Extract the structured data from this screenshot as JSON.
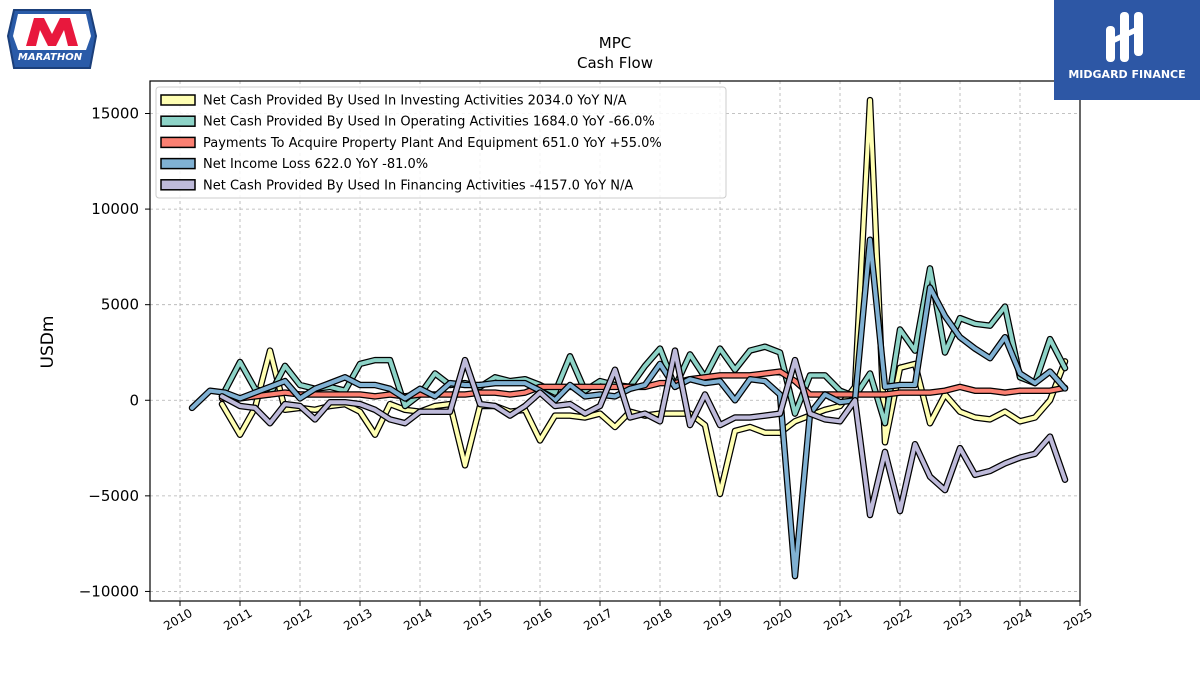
{
  "logos": {
    "left_text": "MARATHON",
    "right_text": "MIDGARD FINANCE"
  },
  "chart_data": {
    "type": "line",
    "title": "MPC",
    "subtitle": "Cash Flow",
    "ylabel": "USDm",
    "xlabel": "",
    "xlim": [
      2009.5,
      2025.0
    ],
    "ylim": [
      -10500,
      16700
    ],
    "yticks": [
      -10000,
      -5000,
      0,
      5000,
      10000,
      15000
    ],
    "xticks": [
      2010,
      2011,
      2012,
      2013,
      2014,
      2015,
      2016,
      2017,
      2018,
      2019,
      2020,
      2021,
      2022,
      2023,
      2024,
      2025
    ],
    "grid": true,
    "legend_position": "top-left",
    "series": [
      {
        "name": "Net Cash Provided By Used In Investing Activities  2034.0 YoY N/A",
        "color": "#ffffb3",
        "points": [
          [
            2010.7,
            -200
          ],
          [
            2011.0,
            -1800
          ],
          [
            2011.25,
            -400
          ],
          [
            2011.5,
            2600
          ],
          [
            2011.75,
            -500
          ],
          [
            2012.0,
            -400
          ],
          [
            2012.25,
            -500
          ],
          [
            2012.5,
            -300
          ],
          [
            2012.75,
            -200
          ],
          [
            2013.0,
            -600
          ],
          [
            2013.25,
            -1800
          ],
          [
            2013.5,
            -200
          ],
          [
            2013.75,
            -500
          ],
          [
            2014.0,
            -600
          ],
          [
            2014.25,
            -300
          ],
          [
            2014.5,
            -200
          ],
          [
            2014.75,
            -3400
          ],
          [
            2015.0,
            -300
          ],
          [
            2015.25,
            -300
          ],
          [
            2015.5,
            -600
          ],
          [
            2015.75,
            -500
          ],
          [
            2016.0,
            -2100
          ],
          [
            2016.25,
            -800
          ],
          [
            2016.5,
            -800
          ],
          [
            2016.75,
            -900
          ],
          [
            2017.0,
            -700
          ],
          [
            2017.25,
            -1400
          ],
          [
            2017.5,
            -600
          ],
          [
            2017.75,
            -800
          ],
          [
            2018.0,
            -700
          ],
          [
            2018.25,
            -700
          ],
          [
            2018.5,
            -700
          ],
          [
            2018.75,
            -1300
          ],
          [
            2019.0,
            -4900
          ],
          [
            2019.25,
            -1600
          ],
          [
            2019.5,
            -1400
          ],
          [
            2019.75,
            -1700
          ],
          [
            2020.0,
            -1700
          ],
          [
            2020.25,
            -1100
          ],
          [
            2020.5,
            -800
          ],
          [
            2020.75,
            -500
          ],
          [
            2021.0,
            -300
          ],
          [
            2021.25,
            700
          ],
          [
            2021.5,
            15700
          ],
          [
            2021.75,
            -2200
          ],
          [
            2022.0,
            1700
          ],
          [
            2022.25,
            1900
          ],
          [
            2022.5,
            -1200
          ],
          [
            2022.75,
            300
          ],
          [
            2023.0,
            -600
          ],
          [
            2023.25,
            -900
          ],
          [
            2023.5,
            -1000
          ],
          [
            2023.75,
            -600
          ],
          [
            2024.0,
            -1100
          ],
          [
            2024.25,
            -900
          ],
          [
            2024.5,
            0
          ],
          [
            2024.75,
            2034
          ]
        ]
      },
      {
        "name": "Net Cash Provided By Used In Operating Activities  1684.0 YoY -66.0%",
        "color": "#8dd3c7",
        "points": [
          [
            2010.7,
            200
          ],
          [
            2011.0,
            2000
          ],
          [
            2011.25,
            600
          ],
          [
            2011.5,
            300
          ],
          [
            2011.75,
            1800
          ],
          [
            2012.0,
            800
          ],
          [
            2012.25,
            600
          ],
          [
            2012.5,
            700
          ],
          [
            2012.75,
            500
          ],
          [
            2013.0,
            1900
          ],
          [
            2013.25,
            2100
          ],
          [
            2013.5,
            2100
          ],
          [
            2013.75,
            -300
          ],
          [
            2014.0,
            300
          ],
          [
            2014.25,
            1400
          ],
          [
            2014.5,
            800
          ],
          [
            2014.75,
            900
          ],
          [
            2015.0,
            700
          ],
          [
            2015.25,
            1200
          ],
          [
            2015.5,
            1000
          ],
          [
            2015.75,
            1100
          ],
          [
            2016.0,
            800
          ],
          [
            2016.25,
            400
          ],
          [
            2016.5,
            2300
          ],
          [
            2016.75,
            500
          ],
          [
            2017.0,
            1000
          ],
          [
            2017.25,
            800
          ],
          [
            2017.5,
            700
          ],
          [
            2017.75,
            1800
          ],
          [
            2018.0,
            2700
          ],
          [
            2018.25,
            700
          ],
          [
            2018.5,
            2400
          ],
          [
            2018.75,
            1200
          ],
          [
            2019.0,
            2700
          ],
          [
            2019.25,
            1600
          ],
          [
            2019.5,
            2600
          ],
          [
            2019.75,
            2800
          ],
          [
            2020.0,
            2500
          ],
          [
            2020.25,
            -700
          ],
          [
            2020.5,
            1300
          ],
          [
            2020.75,
            1300
          ],
          [
            2021.0,
            500
          ],
          [
            2021.25,
            200
          ],
          [
            2021.5,
            1400
          ],
          [
            2021.75,
            -1200
          ],
          [
            2022.0,
            3700
          ],
          [
            2022.25,
            2600
          ],
          [
            2022.5,
            6900
          ],
          [
            2022.75,
            2500
          ],
          [
            2023.0,
            4300
          ],
          [
            2023.25,
            4000
          ],
          [
            2023.5,
            3900
          ],
          [
            2023.75,
            4900
          ],
          [
            2024.0,
            1200
          ],
          [
            2024.25,
            900
          ],
          [
            2024.5,
            3200
          ],
          [
            2024.75,
            1684
          ]
        ]
      },
      {
        "name": "Payments To Acquire Property Plant And Equipment  651.0 YoY +55.0%",
        "color": "#fb8072",
        "points": [
          [
            2010.7,
            100
          ],
          [
            2011.0,
            100
          ],
          [
            2011.25,
            200
          ],
          [
            2011.5,
            300
          ],
          [
            2011.75,
            400
          ],
          [
            2012.0,
            300
          ],
          [
            2012.25,
            300
          ],
          [
            2012.5,
            300
          ],
          [
            2012.75,
            300
          ],
          [
            2013.0,
            300
          ],
          [
            2013.25,
            200
          ],
          [
            2013.5,
            300
          ],
          [
            2013.75,
            200
          ],
          [
            2014.0,
            300
          ],
          [
            2014.25,
            300
          ],
          [
            2014.5,
            300
          ],
          [
            2014.75,
            300
          ],
          [
            2015.0,
            400
          ],
          [
            2015.25,
            400
          ],
          [
            2015.5,
            300
          ],
          [
            2015.75,
            400
          ],
          [
            2016.0,
            700
          ],
          [
            2016.25,
            700
          ],
          [
            2016.5,
            700
          ],
          [
            2016.75,
            700
          ],
          [
            2017.0,
            700
          ],
          [
            2017.25,
            700
          ],
          [
            2017.5,
            700
          ],
          [
            2017.75,
            700
          ],
          [
            2018.0,
            900
          ],
          [
            2018.25,
            900
          ],
          [
            2018.5,
            1100
          ],
          [
            2018.75,
            1200
          ],
          [
            2019.0,
            1300
          ],
          [
            2019.25,
            1300
          ],
          [
            2019.5,
            1300
          ],
          [
            2019.75,
            1400
          ],
          [
            2020.0,
            1500
          ],
          [
            2020.25,
            1000
          ],
          [
            2020.5,
            300
          ],
          [
            2020.75,
            300
          ],
          [
            2021.0,
            300
          ],
          [
            2021.25,
            300
          ],
          [
            2021.5,
            300
          ],
          [
            2021.75,
            300
          ],
          [
            2022.0,
            400
          ],
          [
            2022.25,
            400
          ],
          [
            2022.5,
            400
          ],
          [
            2022.75,
            500
          ],
          [
            2023.0,
            700
          ],
          [
            2023.25,
            500
          ],
          [
            2023.5,
            500
          ],
          [
            2023.75,
            400
          ],
          [
            2024.0,
            500
          ],
          [
            2024.25,
            500
          ],
          [
            2024.5,
            500
          ],
          [
            2024.75,
            651
          ]
        ]
      },
      {
        "name": "Net Income Loss  622.0 YoY -81.0%",
        "color": "#80b1d3",
        "points": [
          [
            2010.2,
            -400
          ],
          [
            2010.5,
            500
          ],
          [
            2010.75,
            400
          ],
          [
            2011.0,
            100
          ],
          [
            2011.25,
            400
          ],
          [
            2011.5,
            700
          ],
          [
            2011.75,
            1000
          ],
          [
            2012.0,
            100
          ],
          [
            2012.25,
            600
          ],
          [
            2012.5,
            900
          ],
          [
            2012.75,
            1200
          ],
          [
            2013.0,
            800
          ],
          [
            2013.25,
            800
          ],
          [
            2013.5,
            600
          ],
          [
            2013.75,
            100
          ],
          [
            2014.0,
            600
          ],
          [
            2014.25,
            200
          ],
          [
            2014.5,
            900
          ],
          [
            2014.75,
            800
          ],
          [
            2015.0,
            800
          ],
          [
            2015.25,
            900
          ],
          [
            2015.5,
            900
          ],
          [
            2015.75,
            900
          ],
          [
            2016.0,
            500
          ],
          [
            2016.25,
            0
          ],
          [
            2016.5,
            800
          ],
          [
            2016.75,
            200
          ],
          [
            2017.0,
            300
          ],
          [
            2017.25,
            200
          ],
          [
            2017.5,
            600
          ],
          [
            2017.75,
            800
          ],
          [
            2018.0,
            1900
          ],
          [
            2018.25,
            700
          ],
          [
            2018.5,
            1100
          ],
          [
            2018.75,
            900
          ],
          [
            2019.0,
            1000
          ],
          [
            2019.25,
            0
          ],
          [
            2019.5,
            1100
          ],
          [
            2019.75,
            1000
          ],
          [
            2020.0,
            300
          ],
          [
            2020.25,
            -9200
          ],
          [
            2020.5,
            -700
          ],
          [
            2020.75,
            300
          ],
          [
            2021.0,
            -100
          ],
          [
            2021.25,
            0
          ],
          [
            2021.5,
            8400
          ],
          [
            2021.75,
            700
          ],
          [
            2022.0,
            800
          ],
          [
            2022.25,
            800
          ],
          [
            2022.5,
            5900
          ],
          [
            2022.75,
            4400
          ],
          [
            2023.0,
            3300
          ],
          [
            2023.25,
            2700
          ],
          [
            2023.5,
            2200
          ],
          [
            2023.75,
            3300
          ],
          [
            2024.0,
            1400
          ],
          [
            2024.25,
            900
          ],
          [
            2024.5,
            1500
          ],
          [
            2024.75,
            622
          ]
        ]
      },
      {
        "name": "Net Cash Provided By Used In Financing Activities  -4157.0 YoY N/A",
        "color": "#bebada",
        "points": [
          [
            2010.7,
            200
          ],
          [
            2011.0,
            -300
          ],
          [
            2011.25,
            -400
          ],
          [
            2011.5,
            -1200
          ],
          [
            2011.75,
            -200
          ],
          [
            2012.0,
            -300
          ],
          [
            2012.25,
            -1000
          ],
          [
            2012.5,
            -100
          ],
          [
            2012.75,
            -100
          ],
          [
            2013.0,
            -200
          ],
          [
            2013.25,
            -500
          ],
          [
            2013.5,
            -1000
          ],
          [
            2013.75,
            -1200
          ],
          [
            2014.0,
            -600
          ],
          [
            2014.25,
            -600
          ],
          [
            2014.5,
            -600
          ],
          [
            2014.75,
            2100
          ],
          [
            2015.0,
            -200
          ],
          [
            2015.25,
            -300
          ],
          [
            2015.5,
            -800
          ],
          [
            2015.75,
            -300
          ],
          [
            2016.0,
            400
          ],
          [
            2016.25,
            -300
          ],
          [
            2016.5,
            -200
          ],
          [
            2016.75,
            -700
          ],
          [
            2017.0,
            -300
          ],
          [
            2017.25,
            1600
          ],
          [
            2017.5,
            -900
          ],
          [
            2017.75,
            -700
          ],
          [
            2018.0,
            -1100
          ],
          [
            2018.25,
            2600
          ],
          [
            2018.5,
            -1300
          ],
          [
            2018.75,
            300
          ],
          [
            2019.0,
            -1300
          ],
          [
            2019.25,
            -900
          ],
          [
            2019.5,
            -900
          ],
          [
            2019.75,
            -800
          ],
          [
            2020.0,
            -700
          ],
          [
            2020.25,
            2100
          ],
          [
            2020.5,
            -700
          ],
          [
            2020.75,
            -1000
          ],
          [
            2021.0,
            -1100
          ],
          [
            2021.25,
            0
          ],
          [
            2021.5,
            -6000
          ],
          [
            2021.75,
            -2700
          ],
          [
            2022.0,
            -5800
          ],
          [
            2022.25,
            -2300
          ],
          [
            2022.5,
            -4000
          ],
          [
            2022.75,
            -4700
          ],
          [
            2023.0,
            -2500
          ],
          [
            2023.25,
            -3900
          ],
          [
            2023.5,
            -3700
          ],
          [
            2023.75,
            -3300
          ],
          [
            2024.0,
            -3000
          ],
          [
            2024.25,
            -2800
          ],
          [
            2024.5,
            -1900
          ],
          [
            2024.75,
            -4157
          ]
        ]
      }
    ]
  }
}
